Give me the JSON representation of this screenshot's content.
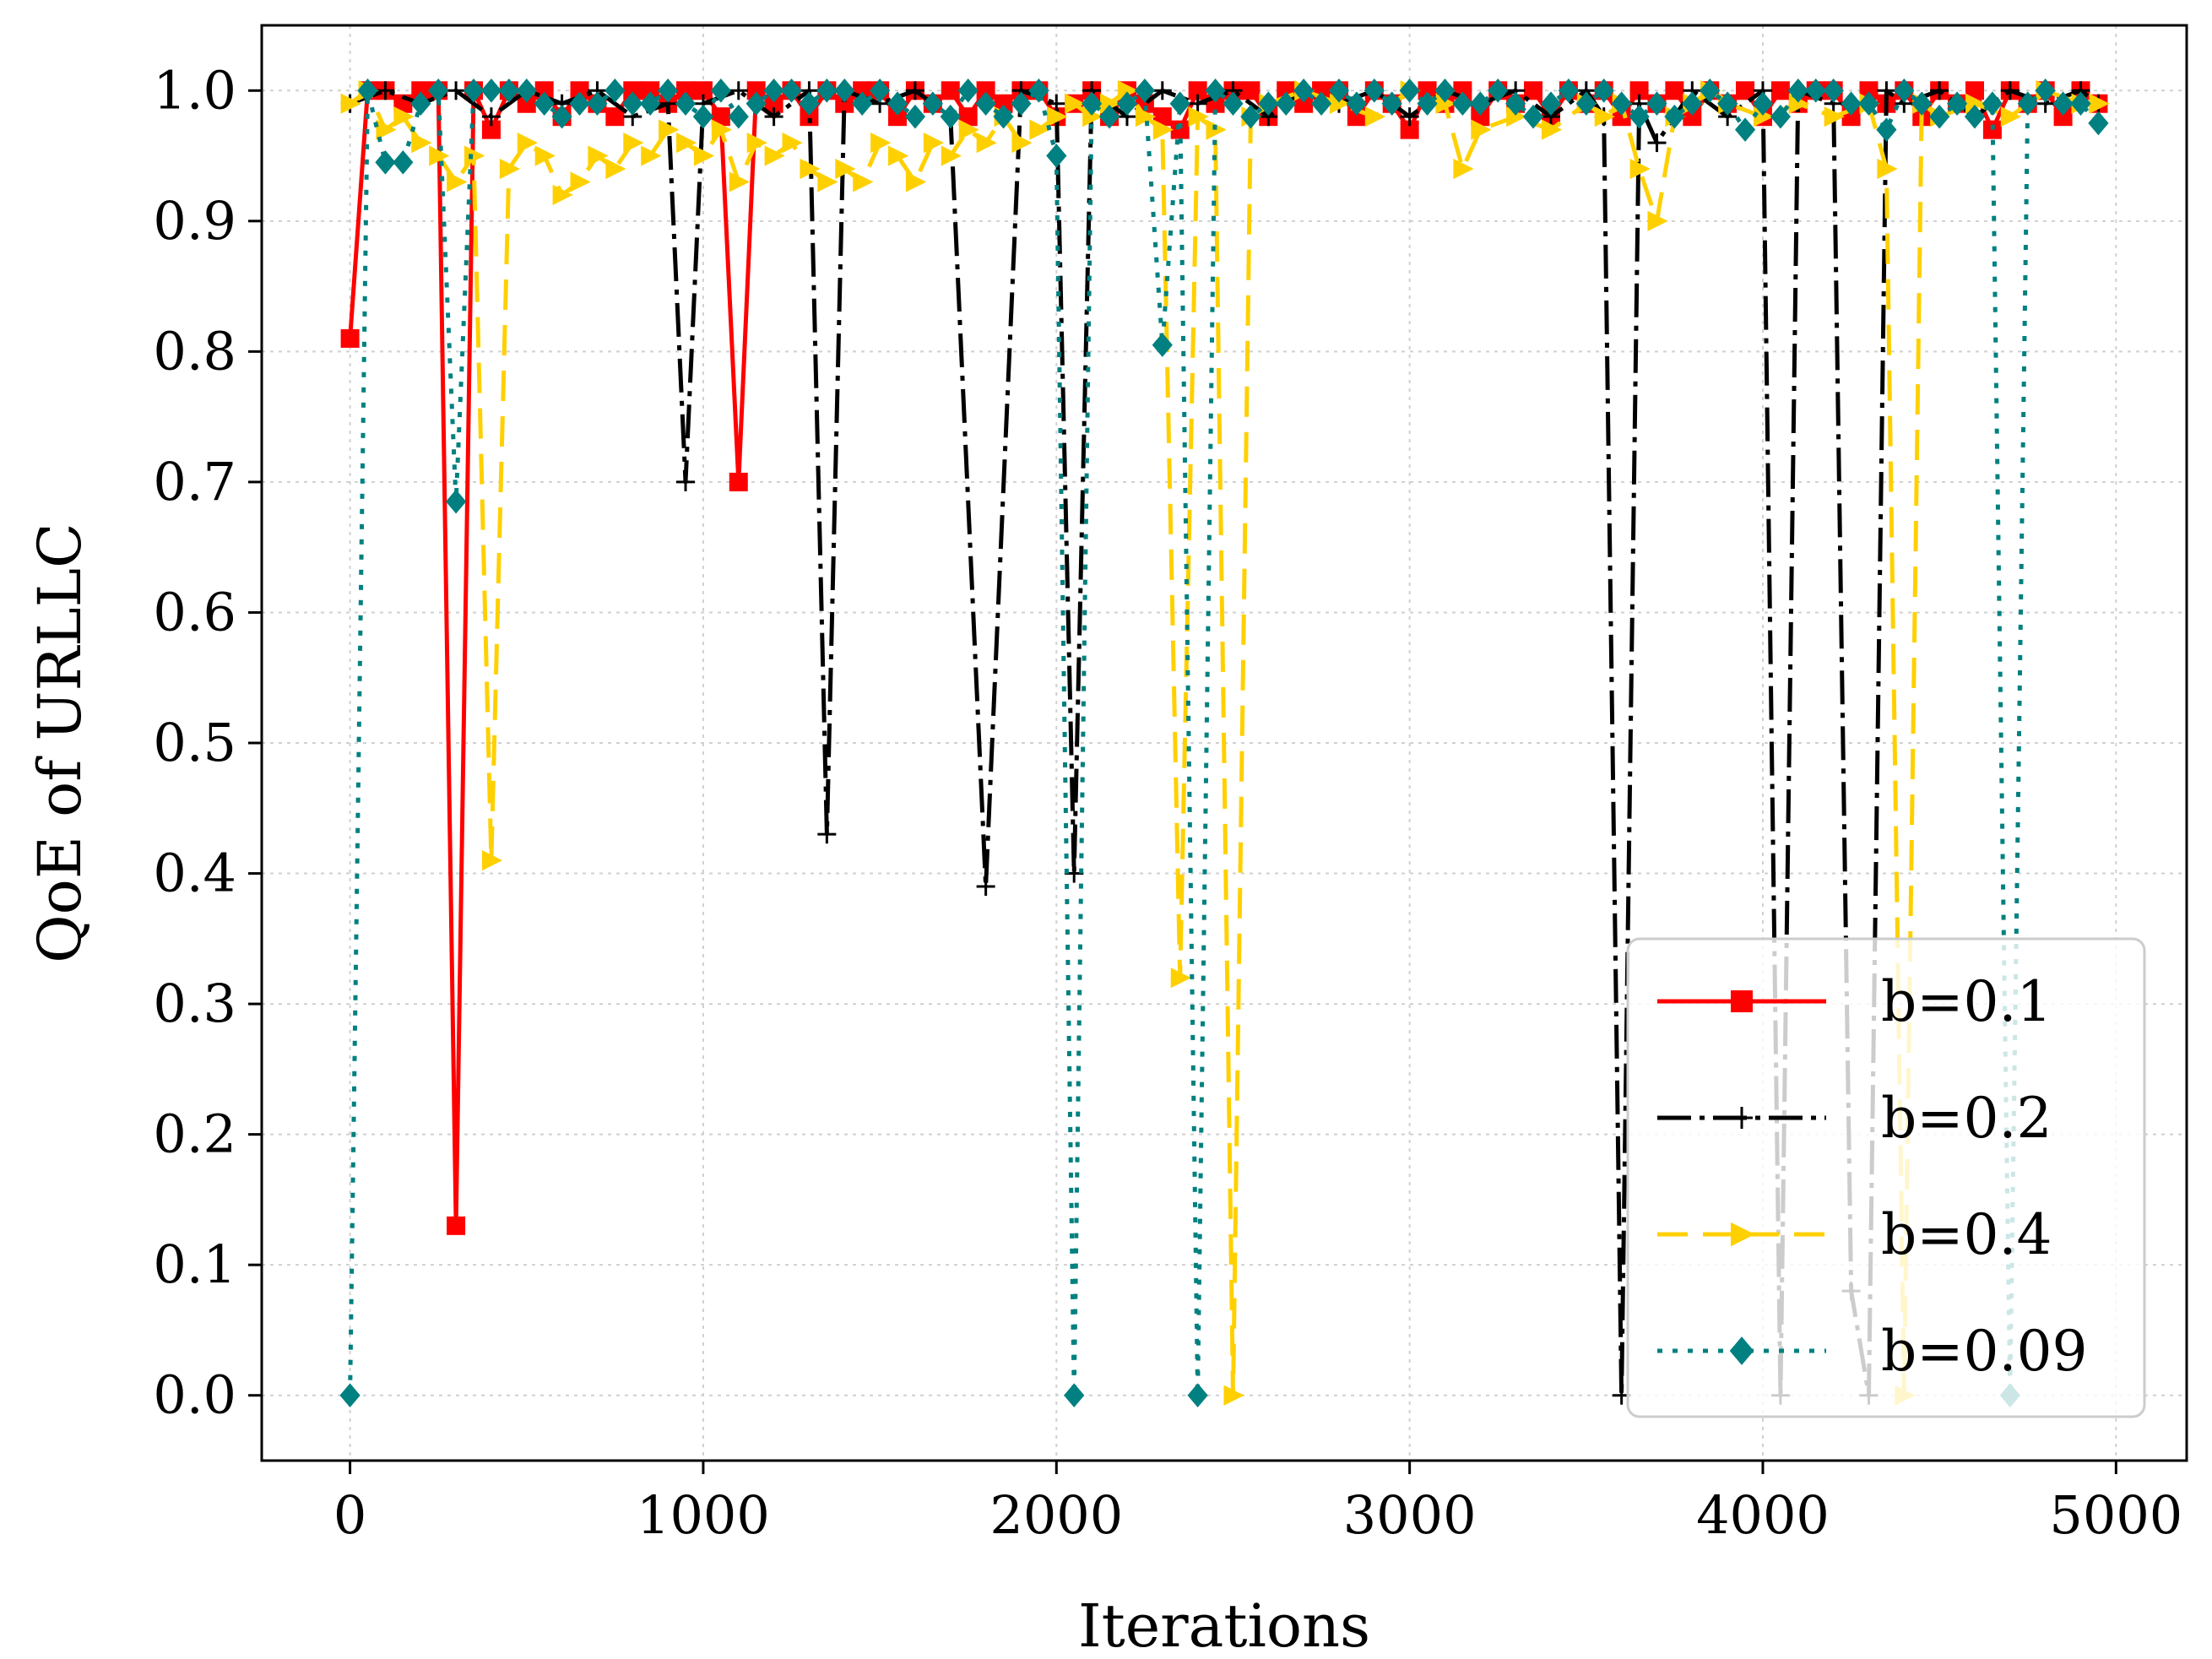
{
  "chart_data": {
    "type": "line",
    "title": "",
    "xlabel": "Iterations",
    "ylabel": "QoE of URLLC",
    "xlim": [
      -250,
      5200
    ],
    "ylim": [
      -0.05,
      1.05
    ],
    "xticks": [
      "0",
      "1000",
      "2000",
      "3000",
      "4000",
      "5000"
    ],
    "yticks": [
      "0.0",
      "0.1",
      "0.2",
      "0.3",
      "0.4",
      "0.5",
      "0.6",
      "0.7",
      "0.8",
      "0.9",
      "1.0"
    ],
    "grid": true,
    "legend_position": "lower-right",
    "series": [
      {
        "name": "b=0.1",
        "color": "#ff0000",
        "marker": "square",
        "dash": "solid",
        "x": [
          0,
          50,
          100,
          150,
          200,
          250,
          300,
          350,
          400,
          450,
          500,
          550,
          600,
          650,
          700,
          750,
          800,
          850,
          900,
          950,
          1000,
          1050,
          1100,
          1150,
          1200,
          1250,
          1300,
          1350,
          1400,
          1450,
          1500,
          1550,
          1600,
          1650,
          1700,
          1750,
          1800,
          1850,
          1900,
          1950,
          2000,
          2050,
          2100,
          2150,
          2200,
          2250,
          2300,
          2350,
          2400,
          2450,
          2500,
          2550,
          2600,
          2650,
          2700,
          2750,
          2800,
          2850,
          2900,
          2950,
          3000,
          3050,
          3100,
          3150,
          3200,
          3250,
          3300,
          3350,
          3400,
          3450,
          3500,
          3550,
          3600,
          3650,
          3700,
          3750,
          3800,
          3850,
          3900,
          3950,
          4000,
          4050,
          4100,
          4150,
          4200,
          4250,
          4300,
          4350,
          4400,
          4450,
          4500,
          4550,
          4600,
          4650,
          4700,
          4750,
          4800,
          4850,
          4900,
          4950
        ],
        "values": [
          0.81,
          1.0,
          1.0,
          0.99,
          1.0,
          1.0,
          0.13,
          1.0,
          0.97,
          1.0,
          0.99,
          1.0,
          0.98,
          1.0,
          0.99,
          0.98,
          1.0,
          1.0,
          0.99,
          1.0,
          1.0,
          0.98,
          0.7,
          1.0,
          0.99,
          1.0,
          0.98,
          1.0,
          0.99,
          1.0,
          1.0,
          0.98,
          1.0,
          0.99,
          1.0,
          0.98,
          1.0,
          0.99,
          1.0,
          1.0,
          0.98,
          0.99,
          1.0,
          0.98,
          1.0,
          0.99,
          0.98,
          0.97,
          1.0,
          0.99,
          1.0,
          1.0,
          0.98,
          1.0,
          0.99,
          1.0,
          1.0,
          0.98,
          1.0,
          0.99,
          0.97,
          1.0,
          0.99,
          1.0,
          0.98,
          1.0,
          0.99,
          1.0,
          0.98,
          1.0,
          0.99,
          1.0,
          0.98,
          1.0,
          0.99,
          1.0,
          0.98,
          1.0,
          0.99,
          1.0,
          0.98,
          1.0,
          0.99,
          1.0,
          1.0,
          0.98,
          1.0,
          0.99,
          1.0,
          0.98,
          1.0,
          0.99,
          1.0,
          0.97,
          1.0,
          0.99,
          1.0,
          0.98,
          1.0,
          0.99
        ]
      },
      {
        "name": "b=0.2",
        "color": "#000000",
        "marker": "plus",
        "dash": "dashdot",
        "x": [
          0,
          100,
          200,
          300,
          400,
          500,
          600,
          700,
          800,
          900,
          950,
          1000,
          1100,
          1200,
          1300,
          1350,
          1400,
          1500,
          1600,
          1700,
          1800,
          1900,
          2000,
          2050,
          2100,
          2200,
          2300,
          2400,
          2500,
          2600,
          2700,
          2800,
          2900,
          3000,
          3100,
          3200,
          3300,
          3400,
          3500,
          3550,
          3600,
          3650,
          3700,
          3800,
          3900,
          4000,
          4050,
          4100,
          4200,
          4250,
          4300,
          4350,
          4400,
          4500,
          4600,
          4700,
          4800,
          4900,
          4950
        ],
        "values": [
          0.99,
          1.0,
          0.99,
          1.0,
          0.98,
          1.0,
          0.99,
          1.0,
          0.98,
          0.99,
          0.7,
          0.99,
          1.0,
          0.98,
          1.0,
          0.43,
          1.0,
          0.99,
          1.0,
          0.98,
          0.39,
          1.0,
          0.99,
          0.4,
          1.0,
          0.98,
          1.0,
          0.99,
          1.0,
          0.98,
          1.0,
          0.99,
          1.0,
          0.98,
          1.0,
          0.99,
          1.0,
          0.98,
          1.0,
          0.98,
          0.0,
          0.99,
          0.96,
          1.0,
          0.98,
          1.0,
          0.0,
          1.0,
          0.99,
          0.08,
          0.0,
          1.0,
          0.99,
          1.0,
          0.98,
          1.0,
          0.99,
          1.0,
          0.99
        ]
      },
      {
        "name": "b=0.4",
        "color": "#ffd000",
        "marker": "triangle-right",
        "dash": "dashed",
        "x": [
          0,
          50,
          100,
          150,
          200,
          250,
          300,
          350,
          400,
          450,
          500,
          550,
          600,
          650,
          700,
          750,
          800,
          850,
          900,
          950,
          1000,
          1050,
          1100,
          1150,
          1200,
          1250,
          1300,
          1350,
          1400,
          1450,
          1500,
          1550,
          1600,
          1650,
          1700,
          1750,
          1800,
          1850,
          1900,
          1950,
          2000,
          2050,
          2100,
          2150,
          2200,
          2250,
          2300,
          2350,
          2400,
          2450,
          2500,
          2550,
          2600,
          2700,
          2800,
          2900,
          3000,
          3100,
          3150,
          3200,
          3300,
          3400,
          3500,
          3550,
          3600,
          3650,
          3700,
          3750,
          3800,
          3850,
          3900,
          4000,
          4100,
          4200,
          4300,
          4350,
          4400,
          4450,
          4500,
          4600,
          4700,
          4800,
          4900,
          4950
        ],
        "values": [
          0.99,
          1.0,
          0.97,
          0.98,
          0.96,
          0.95,
          0.93,
          0.95,
          0.41,
          0.94,
          0.96,
          0.95,
          0.92,
          0.93,
          0.95,
          0.94,
          0.96,
          0.95,
          0.97,
          0.96,
          0.95,
          0.97,
          0.93,
          0.96,
          0.95,
          0.96,
          0.94,
          0.93,
          0.94,
          0.93,
          0.96,
          0.95,
          0.93,
          0.96,
          0.95,
          0.97,
          0.96,
          0.98,
          0.96,
          0.97,
          0.98,
          0.99,
          0.98,
          0.99,
          1.0,
          0.98,
          0.97,
          0.32,
          0.98,
          0.97,
          0.0,
          0.98,
          0.99,
          1.0,
          0.99,
          0.98,
          1.0,
          0.99,
          0.94,
          0.97,
          0.98,
          0.97,
          0.99,
          0.98,
          0.99,
          0.94,
          0.9,
          0.98,
          0.99,
          1.0,
          0.99,
          0.98,
          0.99,
          0.98,
          0.99,
          0.94,
          0.0,
          0.99,
          0.98,
          0.99,
          0.98,
          1.0,
          0.99,
          0.99
        ]
      },
      {
        "name": "b=0.09",
        "color": "#008080",
        "marker": "diamond",
        "dash": "dotted",
        "x": [
          0,
          50,
          100,
          150,
          200,
          250,
          300,
          350,
          400,
          450,
          500,
          550,
          600,
          650,
          700,
          750,
          800,
          850,
          900,
          950,
          1000,
          1050,
          1100,
          1150,
          1200,
          1250,
          1300,
          1350,
          1400,
          1450,
          1500,
          1550,
          1600,
          1650,
          1700,
          1750,
          1800,
          1850,
          1900,
          1950,
          2000,
          2050,
          2100,
          2150,
          2200,
          2250,
          2300,
          2350,
          2400,
          2450,
          2500,
          2550,
          2600,
          2650,
          2700,
          2750,
          2800,
          2850,
          2900,
          2950,
          3000,
          3050,
          3100,
          3150,
          3200,
          3250,
          3300,
          3350,
          3400,
          3450,
          3500,
          3550,
          3600,
          3650,
          3700,
          3750,
          3800,
          3850,
          3900,
          3950,
          4000,
          4050,
          4100,
          4150,
          4200,
          4250,
          4300,
          4350,
          4400,
          4450,
          4500,
          4550,
          4600,
          4650,
          4700,
          4750,
          4800,
          4850,
          4900,
          4950
        ],
        "values": [
          0.0,
          1.0,
          0.945,
          0.945,
          0.99,
          1.0,
          0.685,
          1.0,
          1.0,
          1.0,
          1.0,
          0.99,
          0.98,
          0.99,
          0.99,
          1.0,
          0.99,
          0.99,
          1.0,
          0.99,
          0.98,
          1.0,
          0.98,
          0.99,
          1.0,
          1.0,
          0.99,
          1.0,
          1.0,
          0.99,
          1.0,
          0.99,
          0.98,
          0.99,
          0.98,
          1.0,
          0.99,
          0.98,
          0.99,
          1.0,
          0.95,
          0.0,
          0.99,
          0.98,
          0.99,
          1.0,
          0.805,
          0.99,
          0.0,
          1.0,
          0.99,
          0.98,
          0.99,
          0.99,
          1.0,
          0.99,
          1.0,
          0.99,
          1.0,
          0.99,
          1.0,
          0.99,
          1.0,
          0.99,
          0.99,
          1.0,
          0.99,
          0.98,
          0.99,
          1.0,
          0.99,
          1.0,
          0.99,
          0.98,
          0.99,
          0.98,
          0.99,
          1.0,
          0.99,
          0.97,
          0.99,
          0.98,
          1.0,
          1.0,
          1.0,
          0.99,
          0.99,
          0.97,
          1.0,
          0.99,
          0.98,
          0.99,
          0.98,
          0.99,
          0.0,
          0.99,
          1.0,
          0.99,
          0.99,
          0.975
        ]
      }
    ]
  }
}
